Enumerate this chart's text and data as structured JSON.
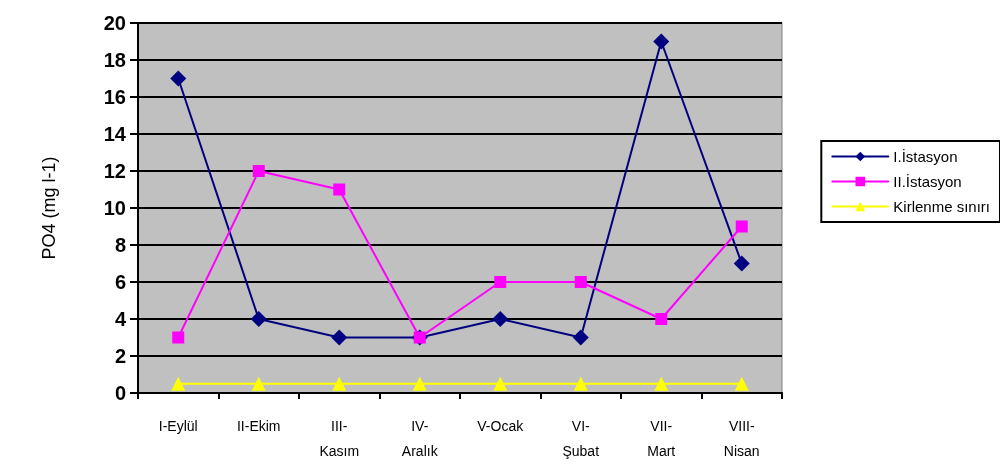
{
  "chart_data": {
    "type": "line",
    "ylabel": "PO4 (mg l-1)",
    "categories": [
      "I-Eylül",
      "II-Ekim",
      "III-Kasım",
      "IV-Aralık",
      "V-Ocak",
      "VI-Şubat",
      "VII-Mart",
      "VIII-Nisan"
    ],
    "series": [
      {
        "name": "I.İstasyon",
        "color": "#000080",
        "marker": "diamond",
        "values": [
          17,
          4,
          3,
          3,
          4,
          3,
          19,
          7
        ]
      },
      {
        "name": "II.İstasyon",
        "color": "#ff00ff",
        "marker": "square",
        "values": [
          3,
          12,
          11,
          3,
          6,
          6,
          4,
          9
        ]
      },
      {
        "name": "Kirlenme sınırı",
        "color": "#ffff00",
        "marker": "triangle",
        "values": [
          0.5,
          0.5,
          0.5,
          0.5,
          0.5,
          0.5,
          0.5,
          0.5
        ]
      }
    ],
    "ylim": [
      0,
      20
    ],
    "yticks": [
      0,
      2,
      4,
      6,
      8,
      10,
      12,
      14,
      16,
      18,
      20
    ],
    "grid": "y",
    "legend": "right",
    "line_style": "solid"
  }
}
